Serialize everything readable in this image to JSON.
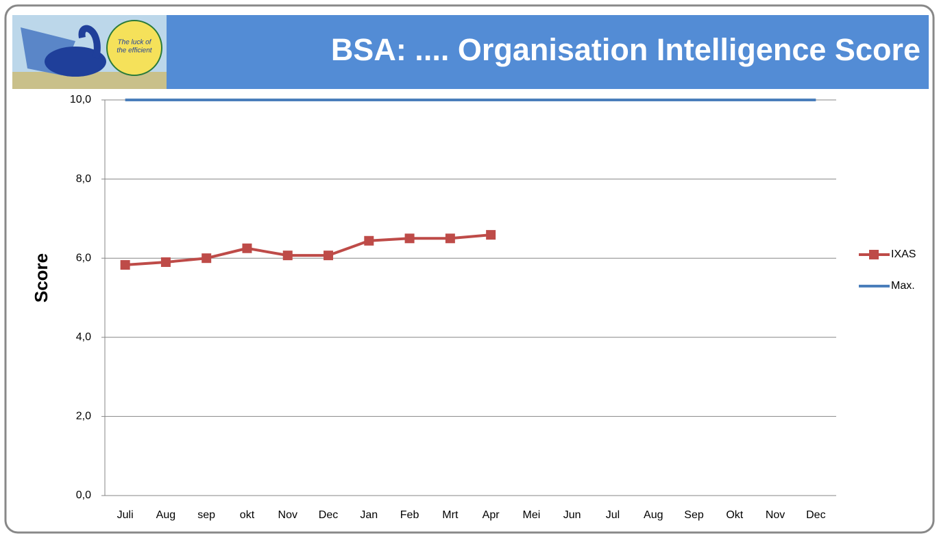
{
  "logo": {
    "lines": [
      "The luck of",
      "the efficient"
    ]
  },
  "chart_data": {
    "type": "line",
    "title": "BSA: .... Organisation Intelligence Score",
    "y_label": "Score",
    "categories": [
      "Juli",
      "Aug",
      "sep",
      "okt",
      "Nov",
      "Dec",
      "Jan",
      "Feb",
      "Mrt",
      "Apr",
      "Mei",
      "Jun",
      "Jul",
      "Aug",
      "Sep",
      "Okt",
      "Nov",
      "Dec"
    ],
    "series": [
      {
        "name": "IXAS",
        "color": "#be4b48",
        "marker": "square",
        "values": [
          5.83,
          5.9,
          6.0,
          6.25,
          6.07,
          6.07,
          6.44,
          6.5,
          6.5,
          6.59,
          null,
          null,
          null,
          null,
          null,
          null,
          null,
          null
        ]
      },
      {
        "name": "Max.",
        "color": "#4a7ebb",
        "marker": "none",
        "values": [
          10,
          10,
          10,
          10,
          10,
          10,
          10,
          10,
          10,
          10,
          10,
          10,
          10,
          10,
          10,
          10,
          10,
          10
        ]
      }
    ],
    "ylim": [
      0,
      10
    ],
    "yticks": [
      {
        "value": 0,
        "label": "0,0"
      },
      {
        "value": 2,
        "label": "2,0"
      },
      {
        "value": 4,
        "label": "4,0"
      },
      {
        "value": 6,
        "label": "6,0"
      },
      {
        "value": 8,
        "label": "8,0"
      },
      {
        "value": 10,
        "label": "10,0"
      }
    ],
    "grid": true,
    "legend": "right"
  }
}
